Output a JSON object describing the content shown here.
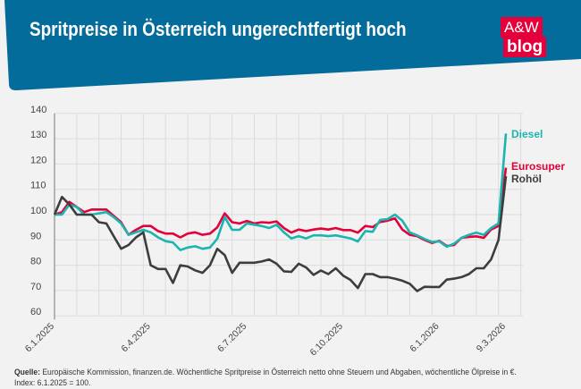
{
  "header": {
    "title": "Spritpreise in Österreich ungerechtfertigt hoch",
    "logo_top": "A&W",
    "logo_bottom": "blog",
    "background_color": "#036c9a",
    "logo_color": "#e4003a"
  },
  "chart_data": {
    "type": "line",
    "title": "",
    "xlabel": "",
    "ylabel": "",
    "ylim": [
      60,
      140
    ],
    "yticks": [
      60,
      70,
      80,
      90,
      100,
      110,
      120,
      130,
      140
    ],
    "x_start": "6.1.2025",
    "x_end": "9.3.2026",
    "x_frequency": "weekly",
    "xtick_labels": [
      "6.1.2025",
      "6.4.2025",
      "6.7.2025",
      "6.10.2025",
      "6.1.2026",
      "9.3.2026"
    ],
    "xtick_weeks": [
      0,
      13,
      26,
      39,
      52,
      61
    ],
    "grid": true,
    "legend": "right, at line ends",
    "series": [
      {
        "name": "Diesel",
        "color": "#1ab5b0",
        "values": [
          100,
          100,
          104,
          103,
          100,
          100,
          100.5,
          101,
          99,
          96.5,
          92,
          93,
          94,
          93,
          91,
          89.5,
          89,
          86,
          87,
          87.5,
          86.5,
          87,
          90.5,
          99,
          94,
          94,
          96.5,
          96,
          95.5,
          94.7,
          96,
          93,
          90.6,
          91.5,
          90.6,
          91.8,
          91.8,
          91.5,
          91.8,
          91.2,
          90.6,
          89.4,
          93.5,
          93.2,
          97.9,
          98.2,
          100,
          97.6,
          93,
          91.8,
          90.4,
          89.2,
          89.4,
          87.3,
          88.5,
          90.8,
          92,
          92.9,
          92,
          94.7,
          96.5,
          132
        ]
      },
      {
        "name": "Eurosuper",
        "color": "#e4003a",
        "values": [
          100,
          101,
          105,
          103,
          101,
          102,
          102,
          102,
          99.5,
          97,
          92,
          94,
          95.5,
          95.5,
          93.5,
          92.5,
          92.5,
          91,
          92.5,
          93,
          92,
          92.5,
          95,
          100.5,
          97,
          96.5,
          97.5,
          96.5,
          97,
          96.8,
          97.3,
          94.7,
          92.9,
          94.1,
          93.5,
          94.1,
          94.5,
          94.1,
          94.7,
          93.9,
          93.9,
          92.9,
          95.5,
          95.1,
          97.1,
          97.6,
          98.5,
          94.1,
          92,
          91.5,
          90,
          88.8,
          89.6,
          87.6,
          88,
          90.8,
          91.2,
          91.4,
          90.8,
          94.1,
          95.5,
          118.5
        ]
      },
      {
        "name": "Rohöl",
        "color": "#3d3d3d",
        "values": [
          100,
          107,
          104,
          100,
          100,
          100,
          97,
          96.5,
          91.5,
          86.5,
          88,
          91,
          93,
          80,
          78.5,
          78.5,
          73,
          80,
          79.5,
          78,
          77,
          80,
          86.5,
          84,
          77,
          81,
          81,
          81,
          81.5,
          82.3,
          80.6,
          77.6,
          77.4,
          80.6,
          79.1,
          76.2,
          77.9,
          76.5,
          78.8,
          75.9,
          74.2,
          71,
          76.5,
          76.5,
          75.3,
          75.3,
          74.7,
          73.9,
          72.7,
          69.8,
          71.5,
          71.4,
          71.4,
          74.3,
          74.7,
          75.3,
          76.5,
          78.8,
          78.8,
          82.3,
          90,
          115.2
        ]
      }
    ]
  },
  "footer": {
    "source_label": "Quelle:",
    "source_text": " Europäische Kommission, finanzen.de. Wöchentliche Spritpreise in Österreich netto ohne Steuern und Abgaben, wöchentliche Ölpreise in €.",
    "index_note": "Index: 6.1.2025 = 100."
  }
}
